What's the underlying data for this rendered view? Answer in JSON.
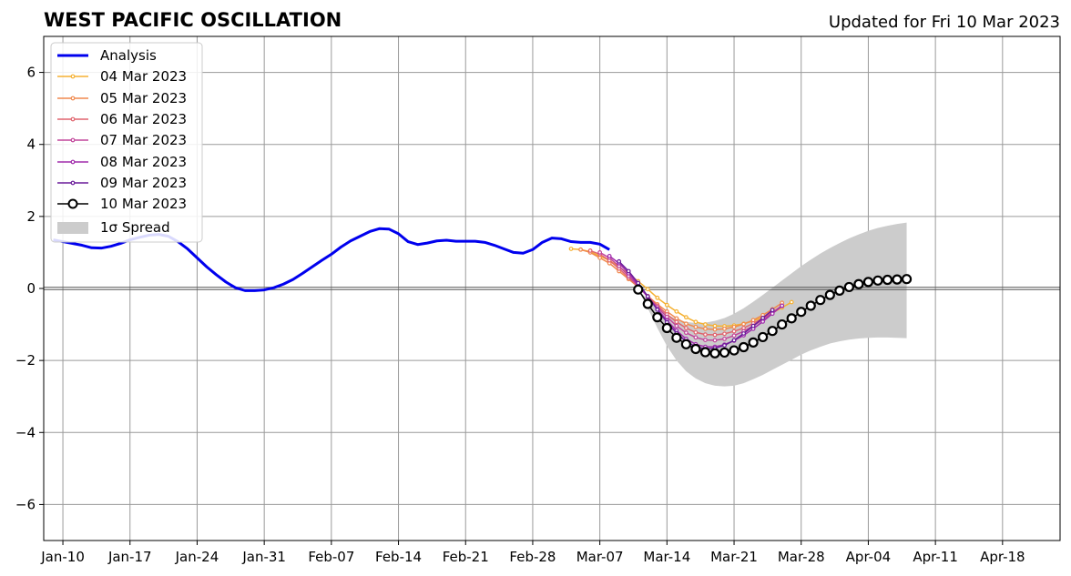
{
  "chart_data": {
    "type": "line",
    "title": "WEST PACIFIC OSCILLATION",
    "subtitle": "Updated for Fri 10 Mar 2023",
    "xlabel": "",
    "ylabel": "",
    "x_range": [
      "2023-01-08",
      "2023-04-24"
    ],
    "ylim": [
      -7,
      7
    ],
    "y_ticks": [
      -6,
      -4,
      -2,
      0,
      2,
      4,
      6
    ],
    "y_tick_labels": [
      "−6",
      "−4",
      "−2",
      "0",
      "2",
      "4",
      "6"
    ],
    "x_ticks": [
      {
        "date": "2023-01-10",
        "label": "Jan-10"
      },
      {
        "date": "2023-01-17",
        "label": "Jan-17"
      },
      {
        "date": "2023-01-24",
        "label": "Jan-24"
      },
      {
        "date": "2023-01-31",
        "label": "Jan-31"
      },
      {
        "date": "2023-02-07",
        "label": "Feb-07"
      },
      {
        "date": "2023-02-14",
        "label": "Feb-14"
      },
      {
        "date": "2023-02-21",
        "label": "Feb-21"
      },
      {
        "date": "2023-02-28",
        "label": "Feb-28"
      },
      {
        "date": "2023-03-07",
        "label": "Mar-07"
      },
      {
        "date": "2023-03-14",
        "label": "Mar-14"
      },
      {
        "date": "2023-03-21",
        "label": "Mar-21"
      },
      {
        "date": "2023-03-28",
        "label": "Mar-28"
      },
      {
        "date": "2023-04-04",
        "label": "Apr-04"
      },
      {
        "date": "2023-04-11",
        "label": "Apr-11"
      },
      {
        "date": "2023-04-18",
        "label": "Apr-18"
      }
    ],
    "grid": true,
    "legend_position": "top-left",
    "analysis": {
      "name": "Analysis",
      "color": "#0000ee",
      "start_date": "2023-01-09",
      "values": [
        1.35,
        1.3,
        1.25,
        1.2,
        1.13,
        1.12,
        1.17,
        1.25,
        1.35,
        1.42,
        1.48,
        1.5,
        1.45,
        1.3,
        1.1,
        0.85,
        0.6,
        0.38,
        0.18,
        0.02,
        -0.06,
        -0.06,
        -0.04,
        0.02,
        0.12,
        0.25,
        0.42,
        0.6,
        0.78,
        0.95,
        1.15,
        1.32,
        1.45,
        1.58,
        1.66,
        1.65,
        1.52,
        1.3,
        1.22,
        1.26,
        1.32,
        1.34,
        1.31,
        1.31,
        1.31,
        1.28,
        1.2,
        1.1,
        1.0,
        0.98,
        1.08,
        1.28,
        1.4,
        1.38,
        1.3,
        1.28,
        1.28,
        1.23,
        1.08
      ]
    },
    "forecasts": [
      {
        "name": "04 Mar 2023",
        "color": "#f5b132",
        "start_date": "2023-03-04",
        "values": [
          1.1,
          1.08,
          1.02,
          0.9,
          0.78,
          0.6,
          0.4,
          0.2,
          -0.02,
          -0.26,
          -0.46,
          -0.64,
          -0.8,
          -0.93,
          -1.0,
          -1.04,
          -1.05,
          -1.03,
          -0.98,
          -0.9,
          -0.8,
          -0.68,
          -0.53,
          -0.38
        ]
      },
      {
        "name": "05 Mar 2023",
        "color": "#f0894e",
        "start_date": "2023-03-05",
        "values": [
          1.08,
          1.0,
          0.85,
          0.7,
          0.48,
          0.26,
          0.04,
          -0.21,
          -0.44,
          -0.64,
          -0.83,
          -0.98,
          -1.07,
          -1.12,
          -1.14,
          -1.12,
          -1.07,
          -0.99,
          -0.88,
          -0.74,
          -0.58,
          -0.4
        ]
      },
      {
        "name": "06 Mar 2023",
        "color": "#e0646e",
        "start_date": "2023-03-06",
        "values": [
          1.05,
          0.95,
          0.78,
          0.55,
          0.3,
          0.05,
          -0.22,
          -0.48,
          -0.72,
          -0.93,
          -1.1,
          -1.22,
          -1.28,
          -1.29,
          -1.26,
          -1.19,
          -1.1,
          -0.97,
          -0.83,
          -0.66,
          -0.48
        ]
      },
      {
        "name": "07 Mar 2023",
        "color": "#c2469b",
        "start_date": "2023-03-07",
        "values": [
          1.0,
          0.85,
          0.62,
          0.35,
          0.07,
          -0.23,
          -0.52,
          -0.79,
          -1.04,
          -1.23,
          -1.36,
          -1.43,
          -1.44,
          -1.4,
          -1.31,
          -1.19,
          -1.04,
          -0.87,
          -0.68,
          -0.49
        ]
      },
      {
        "name": "08 Mar 2023",
        "color": "#a02bab",
        "start_date": "2023-03-08",
        "values": [
          0.9,
          0.7,
          0.42,
          0.1,
          -0.24,
          -0.57,
          -0.89,
          -1.17,
          -1.4,
          -1.55,
          -1.62,
          -1.62,
          -1.56,
          -1.45,
          -1.3,
          -1.12,
          -0.92,
          -0.7,
          -0.48
        ]
      },
      {
        "name": "09 Mar 2023",
        "color": "#6a1c9a",
        "start_date": "2023-03-09",
        "values": [
          0.75,
          0.48,
          0.15,
          -0.22,
          -0.59,
          -0.94,
          -1.24,
          -1.47,
          -1.62,
          -1.68,
          -1.66,
          -1.58,
          -1.44,
          -1.25,
          -1.04,
          -0.82,
          -0.6
        ]
      }
    ],
    "current_forecast": {
      "name": "10 Mar 2023",
      "color": "#000000",
      "start_date": "2023-03-11",
      "values": [
        -0.03,
        -0.43,
        -0.8,
        -1.1,
        -1.37,
        -1.55,
        -1.68,
        -1.77,
        -1.8,
        -1.78,
        -1.72,
        -1.63,
        -1.5,
        -1.35,
        -1.18,
        -1.0,
        -0.83,
        -0.65,
        -0.48,
        -0.32,
        -0.18,
        -0.06,
        0.04,
        0.12,
        0.18,
        0.22,
        0.24,
        0.25,
        0.26
      ]
    },
    "spread": {
      "name": "1σ Spread",
      "color": "#cccccc",
      "start_date": "2023-03-11",
      "upper": [
        -0.03,
        -0.32,
        -0.55,
        -0.72,
        -0.85,
        -0.93,
        -0.96,
        -0.95,
        -0.9,
        -0.82,
        -0.7,
        -0.55,
        -0.37,
        -0.18,
        0.02,
        0.22,
        0.42,
        0.62,
        0.8,
        0.97,
        1.12,
        1.26,
        1.39,
        1.5,
        1.6,
        1.68,
        1.74,
        1.79,
        1.83
      ],
      "lower": [
        -0.03,
        -0.55,
        -1.1,
        -1.6,
        -2.0,
        -2.3,
        -2.5,
        -2.63,
        -2.7,
        -2.72,
        -2.7,
        -2.63,
        -2.52,
        -2.4,
        -2.26,
        -2.12,
        -1.98,
        -1.84,
        -1.72,
        -1.62,
        -1.53,
        -1.47,
        -1.42,
        -1.39,
        -1.37,
        -1.36,
        -1.36,
        -1.37,
        -1.38
      ]
    }
  }
}
